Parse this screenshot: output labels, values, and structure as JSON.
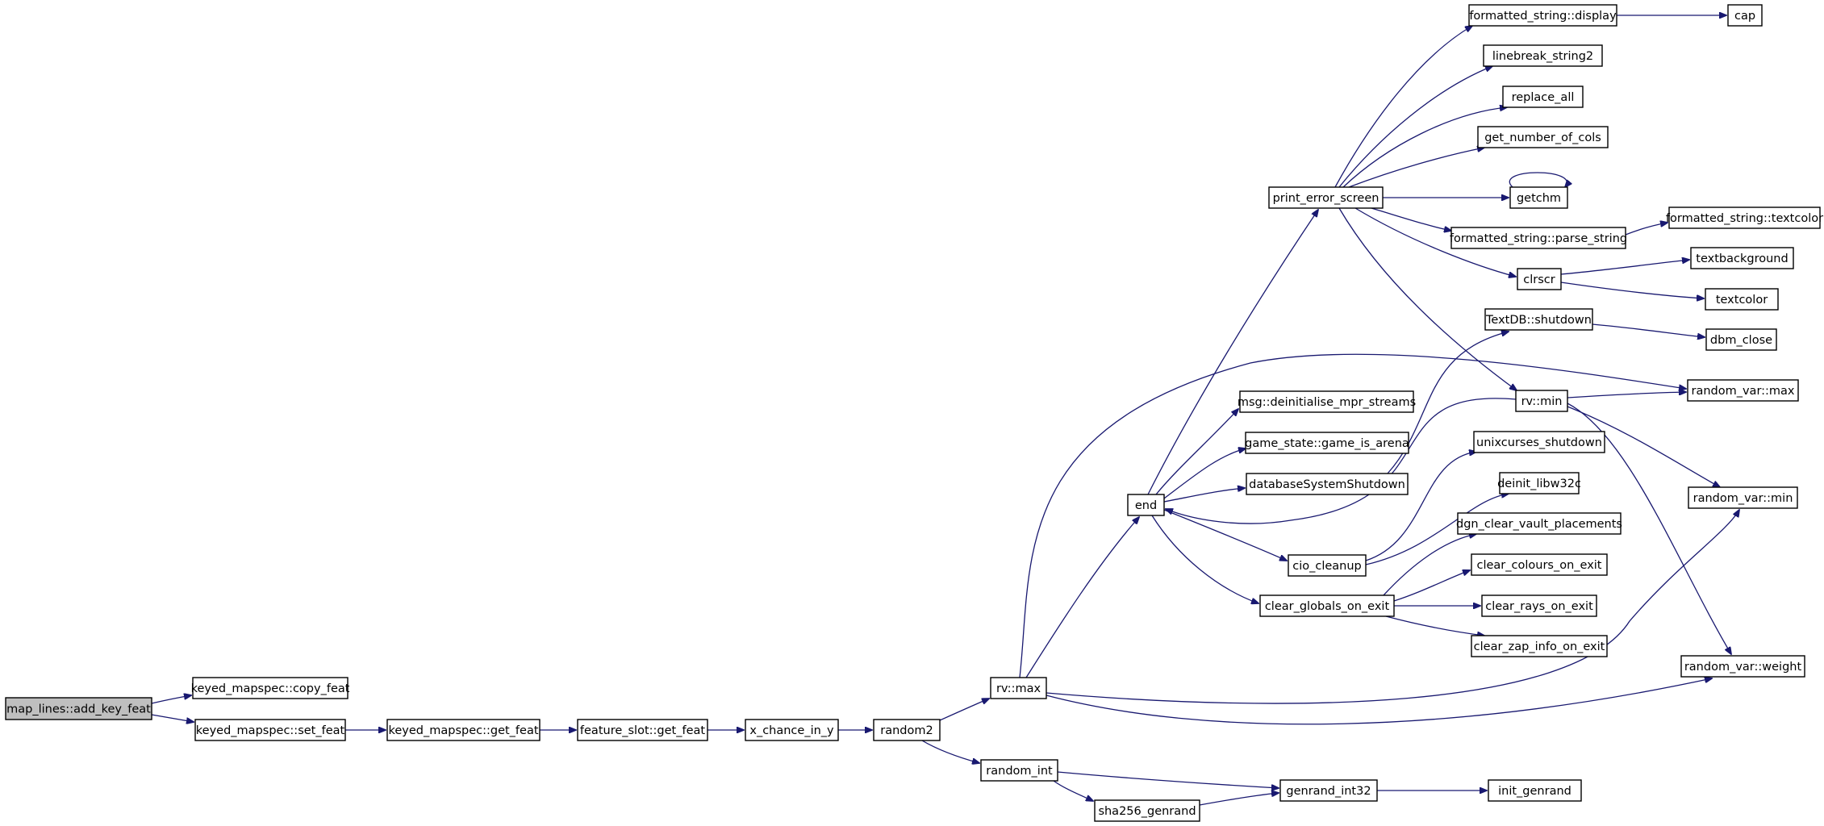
{
  "diagram": {
    "type": "call-graph",
    "root": "map_lines::add_key_feat",
    "nodes": [
      {
        "id": "add_key_feat",
        "label": "map_lines::add_key_feat",
        "root": true
      },
      {
        "id": "copy_feat",
        "label": "keyed_mapspec::copy_feat"
      },
      {
        "id": "set_feat",
        "label": "keyed_mapspec::set_feat"
      },
      {
        "id": "get_feat",
        "label": "keyed_mapspec::get_feat"
      },
      {
        "id": "fs_get_feat",
        "label": "feature_slot::get_feat"
      },
      {
        "id": "x_chance",
        "label": "x_chance_in_y"
      },
      {
        "id": "random2",
        "label": "random2"
      },
      {
        "id": "rv_max",
        "label": "rv::max"
      },
      {
        "id": "random_int",
        "label": "random_int"
      },
      {
        "id": "sha256",
        "label": "sha256_genrand"
      },
      {
        "id": "genrand_int32",
        "label": "genrand_int32"
      },
      {
        "id": "init_genrand",
        "label": "init_genrand"
      },
      {
        "id": "end",
        "label": "end"
      },
      {
        "id": "print_error_screen",
        "label": "print_error_screen"
      },
      {
        "id": "msg_deinit",
        "label": "msg::deinitialise_mpr_streams"
      },
      {
        "id": "game_is_arena",
        "label": "game_state::game_is_arena"
      },
      {
        "id": "db_shutdown",
        "label": "databaseSystemShutdown"
      },
      {
        "id": "cio_cleanup",
        "label": "cio_cleanup"
      },
      {
        "id": "clear_globals",
        "label": "clear_globals_on_exit"
      },
      {
        "id": "fs_display",
        "label": "formatted_string::display"
      },
      {
        "id": "cap",
        "label": "cap"
      },
      {
        "id": "linebreak",
        "label": "linebreak_string2"
      },
      {
        "id": "replace_all",
        "label": "replace_all"
      },
      {
        "id": "get_cols",
        "label": "get_number_of_cols"
      },
      {
        "id": "getchm",
        "label": "getchm"
      },
      {
        "id": "parse_string",
        "label": "formatted_string::parse_string"
      },
      {
        "id": "fs_textcolor",
        "label": "formatted_string::textcolor"
      },
      {
        "id": "clrscr",
        "label": "clrscr"
      },
      {
        "id": "textbackground",
        "label": "textbackground"
      },
      {
        "id": "textcolor",
        "label": "textcolor"
      },
      {
        "id": "textdb_shutdown",
        "label": "TextDB::shutdown"
      },
      {
        "id": "dbm_close",
        "label": "dbm_close"
      },
      {
        "id": "rv_min",
        "label": "rv::min"
      },
      {
        "id": "random_var_max",
        "label": "random_var::max"
      },
      {
        "id": "unixcurses",
        "label": "unixcurses_shutdown"
      },
      {
        "id": "deinit_libw32c",
        "label": "deinit_libw32c"
      },
      {
        "id": "dgn_clear",
        "label": "dgn_clear_vault_placements"
      },
      {
        "id": "clear_colours",
        "label": "clear_colours_on_exit"
      },
      {
        "id": "clear_rays",
        "label": "clear_rays_on_exit"
      },
      {
        "id": "clear_zap",
        "label": "clear_zap_info_on_exit"
      },
      {
        "id": "random_var_min",
        "label": "random_var::min"
      },
      {
        "id": "random_var_weight",
        "label": "random_var::weight"
      }
    ],
    "edges": [
      {
        "from": "add_key_feat",
        "to": "copy_feat"
      },
      {
        "from": "add_key_feat",
        "to": "set_feat"
      },
      {
        "from": "set_feat",
        "to": "get_feat"
      },
      {
        "from": "get_feat",
        "to": "fs_get_feat"
      },
      {
        "from": "fs_get_feat",
        "to": "x_chance"
      },
      {
        "from": "x_chance",
        "to": "random2"
      },
      {
        "from": "random2",
        "to": "rv_max"
      },
      {
        "from": "random2",
        "to": "random_int"
      },
      {
        "from": "random_int",
        "to": "genrand_int32"
      },
      {
        "from": "random_int",
        "to": "sha256"
      },
      {
        "from": "sha256",
        "to": "genrand_int32"
      },
      {
        "from": "genrand_int32",
        "to": "init_genrand"
      },
      {
        "from": "rv_max",
        "to": "end"
      },
      {
        "from": "rv_max",
        "to": "random_var_max"
      },
      {
        "from": "rv_max",
        "to": "random_var_min"
      },
      {
        "from": "rv_max",
        "to": "random_var_weight"
      },
      {
        "from": "end",
        "to": "print_error_screen"
      },
      {
        "from": "end",
        "to": "msg_deinit"
      },
      {
        "from": "end",
        "to": "game_is_arena"
      },
      {
        "from": "end",
        "to": "db_shutdown"
      },
      {
        "from": "end",
        "to": "cio_cleanup"
      },
      {
        "from": "end",
        "to": "clear_globals"
      },
      {
        "from": "rv_min",
        "to": "end"
      },
      {
        "from": "db_shutdown",
        "to": "textdb_shutdown"
      },
      {
        "from": "textdb_shutdown",
        "to": "dbm_close"
      },
      {
        "from": "cio_cleanup",
        "to": "unixcurses"
      },
      {
        "from": "cio_cleanup",
        "to": "deinit_libw32c"
      },
      {
        "from": "clear_globals",
        "to": "dgn_clear"
      },
      {
        "from": "clear_globals",
        "to": "clear_colours"
      },
      {
        "from": "clear_globals",
        "to": "clear_rays"
      },
      {
        "from": "clear_globals",
        "to": "clear_zap"
      },
      {
        "from": "print_error_screen",
        "to": "fs_display"
      },
      {
        "from": "print_error_screen",
        "to": "linebreak"
      },
      {
        "from": "print_error_screen",
        "to": "replace_all"
      },
      {
        "from": "print_error_screen",
        "to": "get_cols"
      },
      {
        "from": "print_error_screen",
        "to": "getchm"
      },
      {
        "from": "print_error_screen",
        "to": "parse_string"
      },
      {
        "from": "print_error_screen",
        "to": "clrscr"
      },
      {
        "from": "print_error_screen",
        "to": "rv_min"
      },
      {
        "from": "fs_display",
        "to": "cap"
      },
      {
        "from": "getchm",
        "to": "getchm"
      },
      {
        "from": "parse_string",
        "to": "fs_textcolor"
      },
      {
        "from": "clrscr",
        "to": "textbackground"
      },
      {
        "from": "clrscr",
        "to": "textcolor"
      },
      {
        "from": "rv_min",
        "to": "random_var_max"
      },
      {
        "from": "rv_min",
        "to": "random_var_min"
      },
      {
        "from": "rv_min",
        "to": "random_var_weight"
      }
    ]
  },
  "colors": {
    "edge": "#191970",
    "node_border": "#000000",
    "node_fill": "#ffffff",
    "root_fill": "#bfbfbf"
  }
}
